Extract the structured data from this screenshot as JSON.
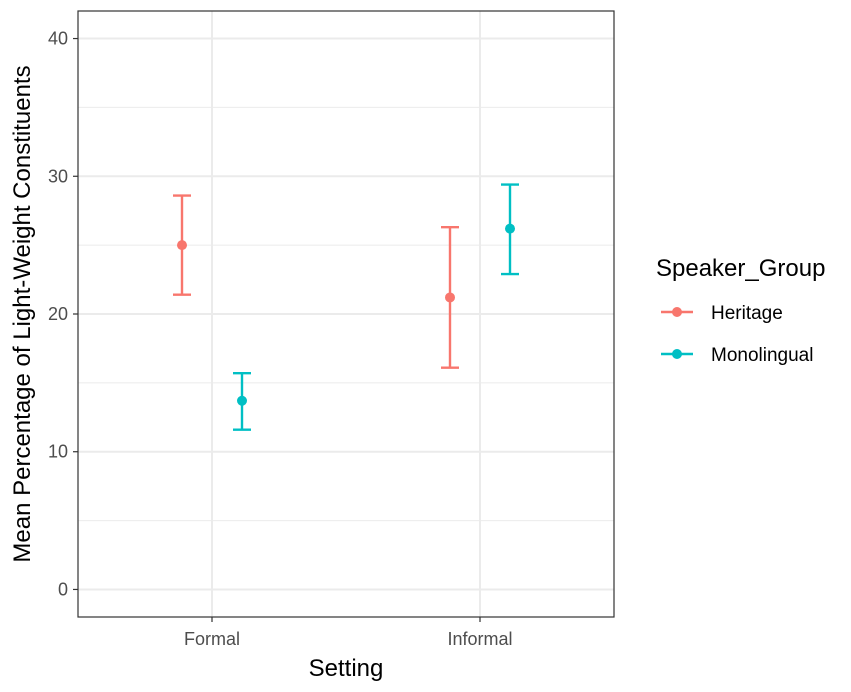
{
  "chart_data": {
    "type": "scatter",
    "subtype": "point-errorbar",
    "xlabel": "Setting",
    "ylabel": "Mean Percentage of Light-Weight Constituents",
    "categories": [
      "Formal",
      "Informal"
    ],
    "ylim": [
      -2,
      42
    ],
    "yticks": [
      0,
      10,
      20,
      30,
      40
    ],
    "grid": true,
    "legend": {
      "title": "Speaker_Group",
      "position": "right"
    },
    "series": [
      {
        "name": "Heritage",
        "color": "#F8766D",
        "points": [
          {
            "x": "Formal",
            "y": 25.0,
            "ymin": 21.4,
            "ymax": 28.6
          },
          {
            "x": "Informal",
            "y": 21.2,
            "ymin": 16.1,
            "ymax": 26.3
          }
        ]
      },
      {
        "name": "Monolingual",
        "color": "#00BFC4",
        "points": [
          {
            "x": "Formal",
            "y": 13.7,
            "ymin": 11.6,
            "ymax": 15.7
          },
          {
            "x": "Informal",
            "y": 26.2,
            "ymin": 22.9,
            "ymax": 29.4
          }
        ]
      }
    ]
  }
}
